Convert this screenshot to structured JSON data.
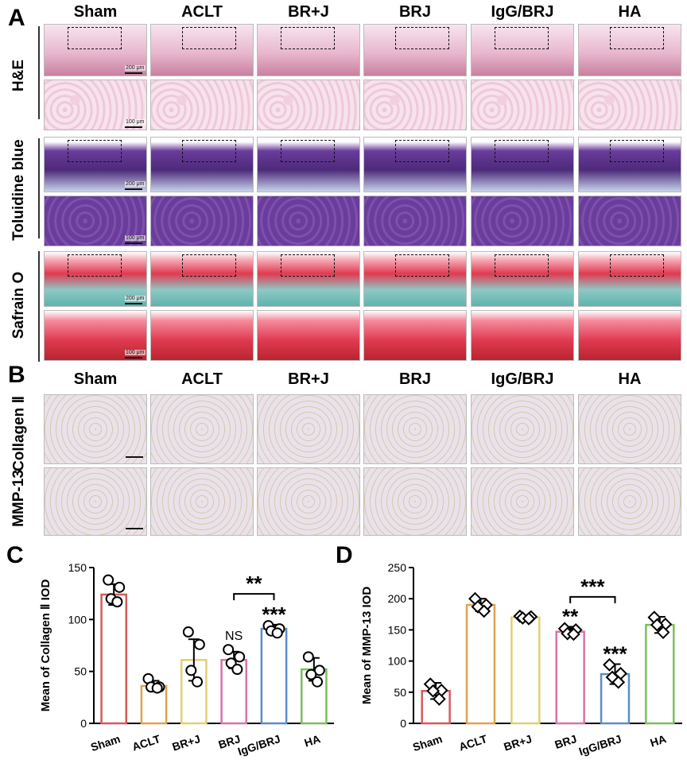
{
  "panel_A": {
    "letter": "A",
    "columns": [
      "Sham",
      "ACLT",
      "BR+J",
      "BRJ",
      "IgG/BRJ",
      "HA"
    ],
    "rows": [
      "H&E",
      "Toluidine blue",
      "Safrain O"
    ],
    "scale_labels": {
      "low": "200 μm",
      "high": "100 μm"
    }
  },
  "panel_B": {
    "letter": "B",
    "columns": [
      "Sham",
      "ACLT",
      "BR+J",
      "BRJ",
      "IgG/BRJ",
      "HA"
    ],
    "rows": [
      "Collagen Ⅱ",
      "MMP-13"
    ]
  },
  "stain_colors": {
    "he": "#e8b8cf",
    "toluidine": "#6a3c9c",
    "safranin": "#e03a50",
    "ihc": "#e9e2ea"
  },
  "chart_data": [
    {
      "panel": "C",
      "type": "bar",
      "categories": [
        "Sham",
        "ACLT",
        "BR+J",
        "BRJ",
        "IgG/BRJ",
        "HA"
      ],
      "values": [
        124,
        36,
        61,
        61,
        91,
        52
      ],
      "errors": [
        10,
        5,
        20,
        8,
        4,
        11
      ],
      "points": [
        [
          138,
          131,
          120,
          117
        ],
        [
          43,
          35,
          35,
          34
        ],
        [
          88,
          76,
          51,
          40
        ],
        [
          71,
          64,
          58,
          52
        ],
        [
          94,
          91,
          89,
          87
        ],
        [
          64,
          51,
          47,
          40
        ]
      ],
      "bar_colors": [
        "#d35b5b",
        "#e0a050",
        "#e3cf73",
        "#d673a8",
        "#5b8cc8",
        "#7cbf5a"
      ],
      "ylabel": "Mean of Collagen Ⅱ IOD",
      "ylim": [
        0,
        150
      ],
      "yticks": [
        0,
        50,
        100,
        150
      ],
      "annotations": [
        {
          "category": "BRJ",
          "text": "NS"
        },
        {
          "category": "IgG/BRJ",
          "text": "***"
        }
      ],
      "comparisons": [
        {
          "from": "BRJ",
          "to": "IgG/BRJ",
          "text": "**"
        }
      ]
    },
    {
      "panel": "D",
      "type": "bar",
      "categories": [
        "Sham",
        "ACLT",
        "BR+J",
        "BRJ",
        "IgG/BRJ",
        "HA"
      ],
      "values": [
        52,
        190,
        170,
        147,
        79,
        158
      ],
      "errors": [
        13,
        10,
        3,
        8,
        16,
        13
      ],
      "points": [
        [
          63,
          53,
          52,
          39
        ],
        [
          200,
          190,
          187,
          180
        ],
        [
          172,
          171,
          169,
          168
        ],
        [
          152,
          150,
          144,
          143
        ],
        [
          94,
          80,
          74,
          66
        ],
        [
          170,
          159,
          158,
          146
        ]
      ],
      "bar_colors": [
        "#d35b5b",
        "#e0a050",
        "#e3cf73",
        "#d673a8",
        "#5b8cc8",
        "#7cbf5a"
      ],
      "ylabel": "Mean of MMP-13 IOD",
      "ylim": [
        0,
        250
      ],
      "yticks": [
        0,
        50,
        100,
        150,
        200,
        250
      ],
      "annotations": [
        {
          "category": "BRJ",
          "text": "**"
        },
        {
          "category": "IgG/BRJ",
          "text": "***"
        }
      ],
      "comparisons": [
        {
          "from": "BRJ",
          "to": "IgG/BRJ",
          "text": "***"
        }
      ]
    }
  ],
  "panel_C_letter": "C",
  "panel_D_letter": "D"
}
